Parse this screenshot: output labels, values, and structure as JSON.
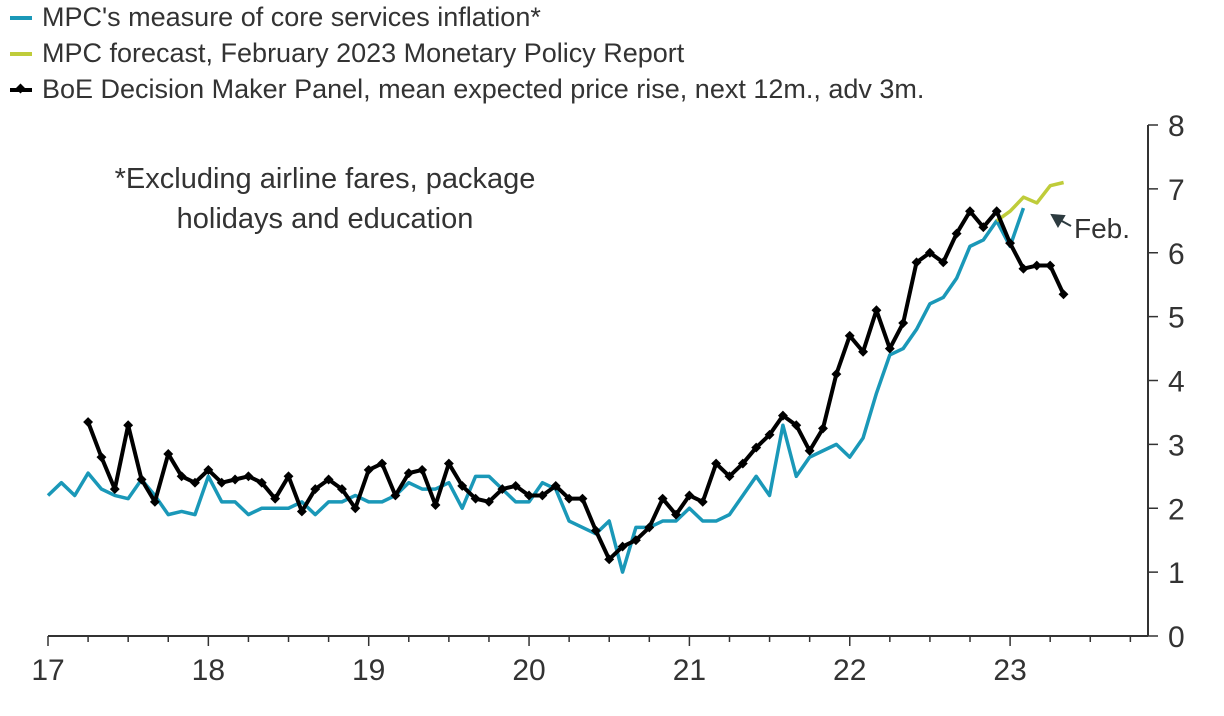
{
  "chart_data": {
    "type": "line",
    "title": "",
    "xlabel": "",
    "ylabel": "",
    "xlim": [
      17,
      23.86
    ],
    "ylim": [
      0,
      8
    ],
    "x_ticks": [
      "17",
      "18",
      "19",
      "20",
      "21",
      "22",
      "23"
    ],
    "y_ticks": [
      "0",
      "1",
      "2",
      "3",
      "4",
      "5",
      "6",
      "7",
      "8"
    ],
    "y_axis_side": "right",
    "grid": false,
    "legend_placement": "top-left",
    "annotation": [
      "*Excluding airline fares, package",
      "holidays and education"
    ],
    "forecast_label": "Feb.",
    "series": [
      {
        "name": "MPC's measure of core services inflation*",
        "color": "#1a98b8",
        "x_start": 17.0,
        "x_step": 0.08333,
        "markers": false,
        "values": [
          2.2,
          2.4,
          2.2,
          2.55,
          2.3,
          2.2,
          2.15,
          2.45,
          2.2,
          1.9,
          1.95,
          1.9,
          2.5,
          2.1,
          2.1,
          1.9,
          2.0,
          2.0,
          2.0,
          2.1,
          1.9,
          2.1,
          2.1,
          2.2,
          2.1,
          2.1,
          2.2,
          2.4,
          2.3,
          2.3,
          2.4,
          2.0,
          2.5,
          2.5,
          2.3,
          2.1,
          2.1,
          2.4,
          2.3,
          1.8,
          1.7,
          1.6,
          1.8,
          1.0,
          1.7,
          1.7,
          1.8,
          1.8,
          2.0,
          1.8,
          1.8,
          1.9,
          2.2,
          2.5,
          2.2,
          3.3,
          2.5,
          2.8,
          2.9,
          3.0,
          2.8,
          3.1,
          3.8,
          4.4,
          4.5,
          4.8,
          5.2,
          5.3,
          5.6,
          6.1,
          6.2,
          6.5,
          6.1,
          6.7
        ]
      },
      {
        "name": "MPC forecast, February 2023 Monetary Policy Report",
        "color": "#bfcc3a",
        "x_start": 22.917,
        "x_step": 0.08333,
        "markers": false,
        "values": [
          6.5,
          6.65,
          6.87,
          6.78,
          7.05,
          7.1
        ]
      },
      {
        "name": "BoE Decision Maker Panel, mean expected price rise, next 12m., adv 3m.",
        "color": "#000000",
        "x_start": 17.25,
        "x_step": 0.08333,
        "markers": true,
        "values": [
          3.35,
          2.8,
          2.3,
          3.3,
          2.45,
          2.1,
          2.85,
          2.5,
          2.4,
          2.6,
          2.4,
          2.45,
          2.5,
          2.4,
          2.15,
          2.5,
          1.95,
          2.3,
          2.45,
          2.3,
          2.0,
          2.6,
          2.7,
          2.2,
          2.55,
          2.6,
          2.05,
          2.7,
          2.35,
          2.15,
          2.1,
          2.3,
          2.35,
          2.2,
          2.2,
          2.35,
          2.15,
          2.15,
          1.65,
          1.2,
          1.4,
          1.5,
          1.7,
          2.15,
          1.9,
          2.2,
          2.1,
          2.7,
          2.5,
          2.7,
          2.95,
          3.15,
          3.45,
          3.3,
          2.9,
          3.25,
          4.1,
          4.7,
          4.45,
          5.1,
          4.5,
          4.9,
          5.85,
          6.0,
          5.85,
          6.3,
          6.65,
          6.4,
          6.65,
          6.15,
          5.75,
          5.8,
          5.8,
          5.35
        ]
      }
    ]
  }
}
